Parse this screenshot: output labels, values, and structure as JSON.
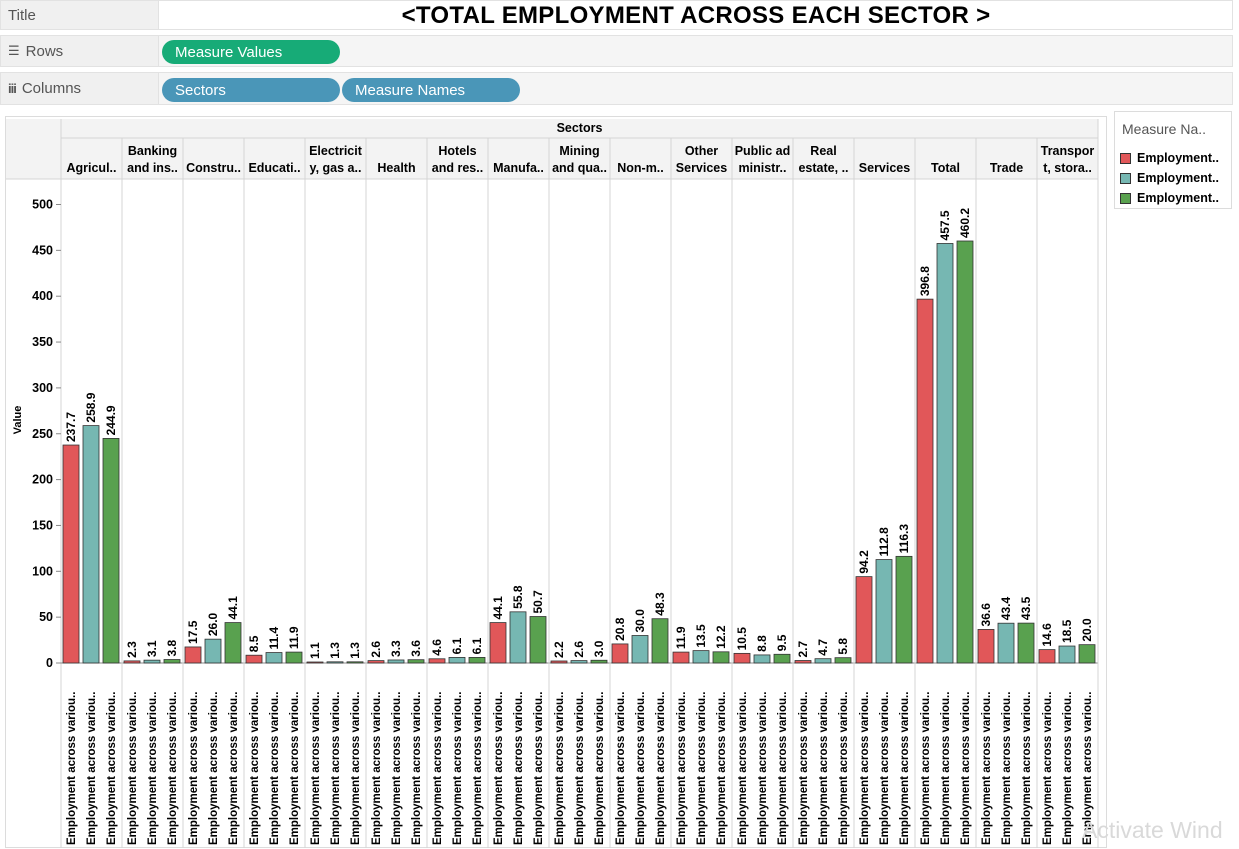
{
  "shelves": {
    "title_label": "Title",
    "title_text": "<TOTAL EMPLOYMENT ACROSS EACH SECTOR >",
    "rows_label": "Rows",
    "rows_pill": "Measure Values",
    "columns_label": "Columns",
    "columns_pills": [
      "Sectors",
      "Measure Names"
    ]
  },
  "legend": {
    "title": "Measure Na..",
    "items": [
      {
        "label": "Employment..",
        "color": "#e15759"
      },
      {
        "label": "Employment..",
        "color": "#76b7b2"
      },
      {
        "label": "Employment..",
        "color": "#59a14f"
      }
    ]
  },
  "watermark": "Activate Wind",
  "chart_data": {
    "type": "bar",
    "title": "",
    "group_header": "Sectors",
    "ylabel": "Value",
    "ylim": [
      0,
      530
    ],
    "yticks": [
      0,
      50,
      100,
      150,
      200,
      250,
      300,
      350,
      400,
      450,
      500
    ],
    "grid": false,
    "series_colors": [
      "#e15759",
      "#76b7b2",
      "#59a14f"
    ],
    "category_labels": [
      [
        "Agricul.."
      ],
      [
        "Banking",
        "and ins.."
      ],
      [
        "Constru.."
      ],
      [
        "Educati.."
      ],
      [
        "Electricit",
        "y, gas a.."
      ],
      [
        "Health"
      ],
      [
        "Hotels",
        "and res.."
      ],
      [
        "Manufa.."
      ],
      [
        "Mining",
        "and qua.."
      ],
      [
        "Non-m.."
      ],
      [
        "Other",
        "Services"
      ],
      [
        "Public ad",
        "ministr.."
      ],
      [
        "Real",
        "estate, .."
      ],
      [
        "Services"
      ],
      [
        "Total"
      ],
      [
        "Trade"
      ],
      [
        "Transpor",
        "t, stora.."
      ]
    ],
    "x_tick_label": "Employment across variou..",
    "values": [
      [
        237.7,
        258.9,
        244.9
      ],
      [
        2.3,
        3.1,
        3.8
      ],
      [
        17.5,
        26.0,
        44.1
      ],
      [
        8.5,
        11.4,
        11.9
      ],
      [
        1.1,
        1.3,
        1.3
      ],
      [
        2.6,
        3.3,
        3.6
      ],
      [
        4.6,
        6.1,
        6.1
      ],
      [
        44.1,
        55.8,
        50.7
      ],
      [
        2.2,
        2.6,
        3.0
      ],
      [
        20.8,
        30.0,
        48.3
      ],
      [
        11.9,
        13.5,
        12.2
      ],
      [
        10.5,
        8.8,
        9.5
      ],
      [
        2.7,
        4.7,
        5.8
      ],
      [
        94.2,
        112.8,
        116.3
      ],
      [
        396.8,
        457.5,
        460.2
      ],
      [
        36.6,
        43.4,
        43.5
      ],
      [
        14.6,
        18.5,
        20.0
      ]
    ],
    "value_labels": [
      [
        "237.7",
        "258.9",
        "244.9"
      ],
      [
        "2.3",
        "3.1",
        "3.8"
      ],
      [
        "17.5",
        "26.0",
        "44.1"
      ],
      [
        "8.5",
        "11.4",
        "11.9"
      ],
      [
        "1.1",
        "1.3",
        "1.3"
      ],
      [
        "2.6",
        "3.3",
        "3.6"
      ],
      [
        "4.6",
        "6.1",
        "6.1"
      ],
      [
        "44.1",
        "55.8",
        "50.7"
      ],
      [
        "2.2",
        "2.6",
        "3.0"
      ],
      [
        "20.8",
        "30.0",
        "48.3"
      ],
      [
        "11.9",
        "13.5",
        "12.2"
      ],
      [
        "10.5",
        "8.8",
        "9.5"
      ],
      [
        "2.7",
        "4.7",
        "5.8"
      ],
      [
        "94.2",
        "112.8",
        "116.3"
      ],
      [
        "396.8",
        "457.5",
        "460.2"
      ],
      [
        "36.6",
        "43.4",
        "43.5"
      ],
      [
        "14.6",
        "18.5",
        "20.0"
      ]
    ]
  }
}
